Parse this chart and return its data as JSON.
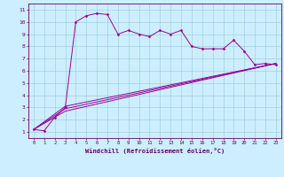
{
  "bg_color": "#cceeff",
  "line_color": "#990099",
  "grid_color": "#99cccc",
  "axis_color": "#660066",
  "xlabel": "Windchill (Refroidissement éolien,°C)",
  "xlim": [
    -0.5,
    23.5
  ],
  "ylim": [
    0.5,
    11.5
  ],
  "xticks": [
    0,
    1,
    2,
    3,
    4,
    5,
    6,
    7,
    8,
    9,
    10,
    11,
    12,
    13,
    14,
    15,
    16,
    17,
    18,
    19,
    20,
    21,
    22,
    23
  ],
  "yticks": [
    1,
    2,
    3,
    4,
    5,
    6,
    7,
    8,
    9,
    10,
    11
  ],
  "series": [
    {
      "x": [
        0,
        1,
        2,
        3,
        4,
        5,
        6,
        7,
        8,
        9,
        10,
        11,
        12,
        13,
        14,
        15,
        16,
        17,
        18,
        19,
        20,
        21,
        22,
        23
      ],
      "y": [
        1.2,
        1.1,
        2.2,
        3.0,
        10.0,
        10.5,
        10.7,
        10.6,
        9.0,
        9.3,
        9.0,
        8.8,
        9.3,
        9.0,
        9.3,
        8.0,
        7.8,
        7.8,
        7.8,
        8.5,
        7.6,
        6.5,
        6.6,
        6.5
      ],
      "marker": true
    },
    {
      "x": [
        0,
        3,
        23
      ],
      "y": [
        1.2,
        3.1,
        6.6
      ],
      "marker": false
    },
    {
      "x": [
        0,
        3,
        23
      ],
      "y": [
        1.2,
        2.9,
        6.6
      ],
      "marker": false
    },
    {
      "x": [
        0,
        3,
        23
      ],
      "y": [
        1.2,
        2.7,
        6.6
      ],
      "marker": false
    }
  ],
  "figsize": [
    3.2,
    2.0
  ],
  "dpi": 100
}
